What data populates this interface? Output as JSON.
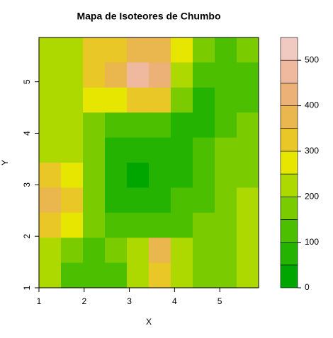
{
  "chart_data": {
    "type": "contour",
    "title": "Mapa de Isoteores de Chumbo",
    "x_label": "X",
    "y_label": "Y",
    "xlim": [
      1,
      5.86
    ],
    "ylim": [
      1,
      5.86
    ],
    "xticks": [
      1,
      2,
      3,
      4,
      5
    ],
    "yticks": [
      1,
      2,
      3,
      4,
      5
    ],
    "levels": [
      0,
      50,
      100,
      150,
      200,
      250,
      300,
      350,
      400,
      450,
      500,
      550
    ],
    "colors": [
      "#00A600",
      "#24B300",
      "#4CBF00",
      "#7ACC00",
      "#ADD900",
      "#E6E600",
      "#E8C727",
      "#EAB64E",
      "#ECB176",
      "#EEB99F",
      "#F0C9C0",
      "#F2F2F2"
    ],
    "legend_ticks": [
      0,
      100,
      200,
      300,
      400,
      500
    ],
    "z": [
      [
        230,
        240,
        300,
        340,
        370,
        350,
        250,
        150,
        140,
        150
      ],
      [
        220,
        240,
        310,
        360,
        450,
        400,
        240,
        120,
        110,
        130
      ],
      [
        210,
        230,
        260,
        280,
        330,
        300,
        180,
        90,
        110,
        140
      ],
      [
        200,
        220,
        190,
        120,
        140,
        100,
        80,
        70,
        120,
        160
      ],
      [
        230,
        210,
        150,
        90,
        80,
        80,
        90,
        110,
        150,
        180
      ],
      [
        300,
        250,
        160,
        80,
        40,
        50,
        90,
        130,
        170,
        190
      ],
      [
        380,
        300,
        170,
        90,
        60,
        60,
        100,
        140,
        180,
        200
      ],
      [
        320,
        250,
        160,
        110,
        120,
        100,
        120,
        160,
        190,
        200
      ],
      [
        230,
        180,
        130,
        150,
        200,
        380,
        200,
        150,
        170,
        200
      ],
      [
        210,
        140,
        120,
        130,
        230,
        300,
        200,
        150,
        170,
        200
      ]
    ]
  }
}
